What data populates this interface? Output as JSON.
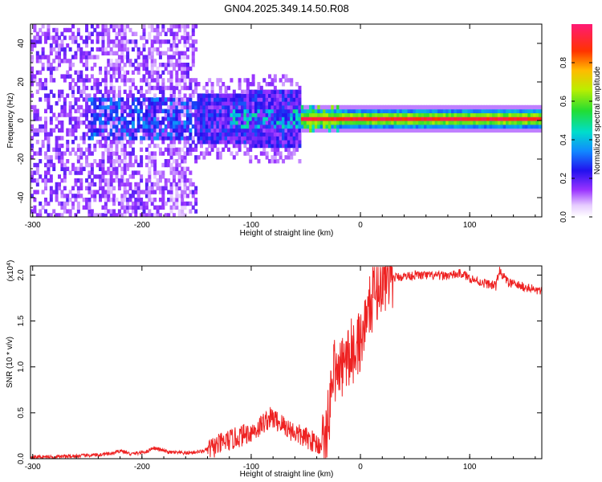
{
  "title": "GN04.2025.349.14.50.R08",
  "chart_data": [
    {
      "type": "heatmap",
      "title": "GN04.2025.349.14.50.R08",
      "xlabel": "Height of straight line (km)",
      "ylabel": "Frequency (Hz)",
      "xlim": [
        -302,
        166
      ],
      "ylim": [
        -50,
        50
      ],
      "x_ticks": [
        -300,
        -200,
        -100,
        0,
        100
      ],
      "y_ticks": [
        -40,
        -20,
        0,
        20,
        40
      ],
      "colorbar": {
        "label": "Normalized spectral amplitude",
        "range": [
          0.0,
          1.0
        ],
        "ticks": [
          "0.0",
          "0.2",
          "0.4",
          "0.6",
          "0.8"
        ],
        "colormap": "rainbow (white → purple → blue → cyan → green → yellow → orange → red → magenta)"
      },
      "features": [
        {
          "x_range": [
            -302,
            -150
          ],
          "description": "broadband scattered low-amplitude energy across all frequencies"
        },
        {
          "x_range": [
            -150,
            -55
          ],
          "freq_range": [
            -15,
            15
          ],
          "amplitude": "0.2-0.5"
        },
        {
          "x_range": [
            -55,
            166
          ],
          "freq_center": 0,
          "amplitude": "0.8-1.0",
          "description": "narrow strong band near 0 Hz"
        }
      ]
    },
    {
      "type": "line",
      "xlabel": "Height of straight line (km)",
      "ylabel": "SNR (10 * v/v)",
      "y_multiplier": "(x10^4)",
      "xlim": [
        -302,
        166
      ],
      "ylim": [
        0,
        2.1
      ],
      "x_ticks": [
        -300,
        -200,
        -100,
        0,
        100
      ],
      "y_ticks": [
        "0.0",
        "0.5",
        "1.0",
        "1.5",
        "2.0"
      ],
      "color": "#ee2222",
      "series": [
        {
          "x": [
            -302,
            -280,
            -260,
            -240,
            -225,
            -220,
            -210,
            -195,
            -190,
            -175,
            -160,
            -145,
            -135,
            -125,
            -115,
            -105,
            -95,
            -88,
            -82,
            -75,
            -65,
            -55,
            -45,
            -38,
            -32,
            -28,
            -25,
            -20,
            -15,
            -10,
            -5,
            0,
            5,
            10,
            15,
            20,
            25,
            35,
            50,
            70,
            85,
            92,
            100,
            110,
            118,
            124,
            127,
            135,
            150,
            166
          ],
          "y": [
            0.02,
            0.02,
            0.03,
            0.04,
            0.06,
            0.09,
            0.05,
            0.08,
            0.12,
            0.07,
            0.06,
            0.08,
            0.12,
            0.18,
            0.22,
            0.27,
            0.32,
            0.4,
            0.45,
            0.4,
            0.32,
            0.25,
            0.2,
            0.15,
            0.2,
            0.55,
            1.0,
            0.9,
            1.05,
            1.1,
            1.2,
            1.3,
            1.5,
            1.7,
            1.85,
            1.92,
            1.96,
            1.98,
            2.0,
            1.99,
            2.0,
            2.02,
            1.97,
            1.92,
            1.9,
            1.88,
            2.05,
            1.92,
            1.87,
            1.82
          ]
        }
      ]
    }
  ]
}
